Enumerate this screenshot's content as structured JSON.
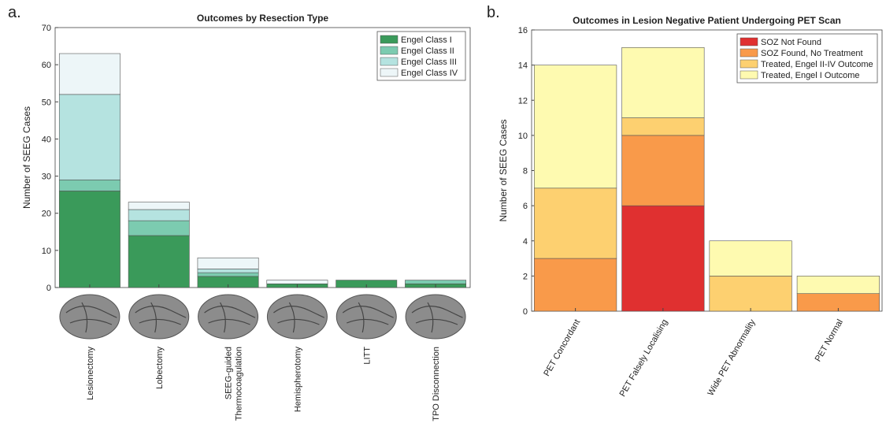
{
  "chart_data": [
    {
      "type": "stacked_bar",
      "panel_label": "a.",
      "title": "Outcomes by Resection Type",
      "ylabel": "Number of SEEG Cases",
      "categories": [
        "Lesionectomy",
        "Lobectomy",
        "SEEG-guided\nThermocoagulation",
        "Hemispherotomy",
        "LITT",
        "TPO Disconnection"
      ],
      "series": [
        {
          "name": "Engel Class I",
          "color": "#3a9a5a",
          "values": [
            26,
            14,
            3,
            1,
            2,
            1
          ]
        },
        {
          "name": "Engel Class II",
          "color": "#7ccbb0",
          "values": [
            3,
            4,
            1,
            0,
            0,
            1
          ]
        },
        {
          "name": "Engel Class III",
          "color": "#b5e3e0",
          "values": [
            23,
            3,
            1,
            0,
            0,
            0
          ]
        },
        {
          "name": "Engel Class IV",
          "color": "#edf6f8",
          "values": [
            11,
            2,
            3,
            1,
            0,
            0
          ]
        }
      ],
      "ylim": [
        0,
        70
      ],
      "yticks": [
        0,
        10,
        20,
        30,
        40,
        50,
        60,
        70
      ],
      "legend": "top-right"
    },
    {
      "type": "stacked_bar",
      "panel_label": "b.",
      "title": "Outcomes in Lesion Negative Patient Undergoing PET Scan",
      "ylabel": "Number of SEEG Cases",
      "categories": [
        "PET Concordant",
        "PET Falsely Localising",
        "Wide PET Abnormality",
        "PET Normal"
      ],
      "series": [
        {
          "name": "SOZ Not Found",
          "color": "#e03030",
          "values": [
            0,
            6,
            0,
            0
          ]
        },
        {
          "name": "SOZ Found, No Treatment",
          "color": "#f99a4a",
          "values": [
            3,
            4,
            0,
            1
          ]
        },
        {
          "name": "Treated, Engel II-IV Outcome",
          "color": "#fdd070",
          "values": [
            4,
            1,
            2,
            0
          ]
        },
        {
          "name": "Treated, Engel I Outcome",
          "color": "#fefab0",
          "values": [
            7,
            4,
            2,
            1
          ]
        }
      ],
      "ylim": [
        0,
        16
      ],
      "yticks": [
        0,
        2,
        4,
        6,
        8,
        10,
        12,
        14,
        16
      ],
      "legend": "top-right"
    }
  ]
}
